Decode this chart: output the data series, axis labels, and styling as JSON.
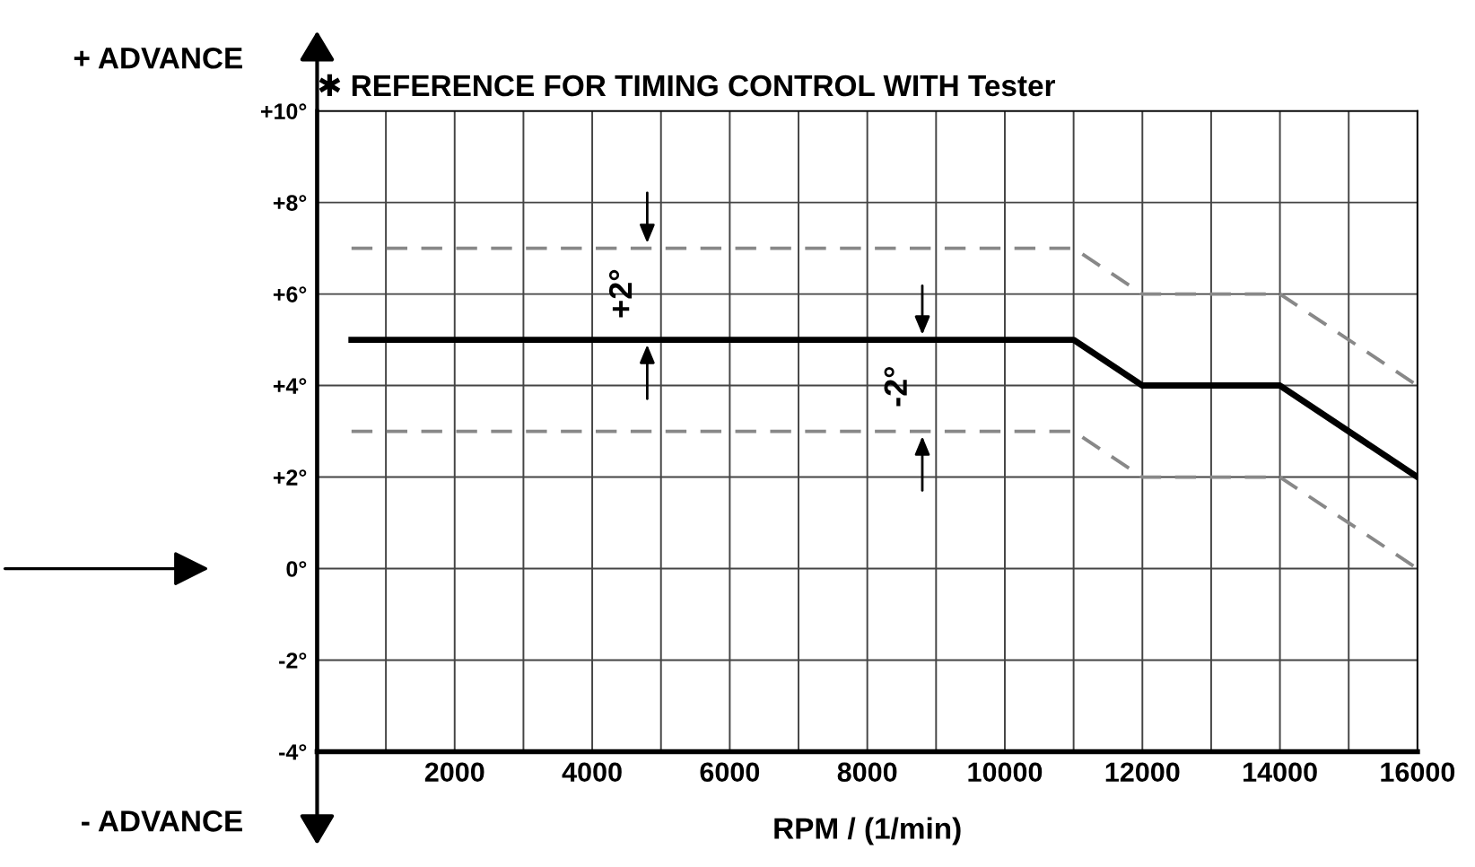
{
  "chart_data": {
    "type": "line",
    "title": "✱ REFERENCE FOR TIMING CONTROL WITH Tester",
    "xlabel": "RPM / (1/min)",
    "x": [
      500,
      11000,
      12000,
      14000,
      16000
    ],
    "series": [
      {
        "color": "#000000",
        "line_style": "solid",
        "values": [
          5,
          5,
          4,
          4,
          2
        ]
      },
      {
        "color": "#888888",
        "line_style": "dashed",
        "values": [
          7,
          7,
          6,
          6,
          4
        ]
      },
      {
        "color": "#888888",
        "line_style": "dashed",
        "values": [
          3,
          3,
          2,
          2,
          0
        ]
      }
    ],
    "xlim": [
      0,
      16000
    ],
    "ylim": [
      -4,
      10
    ],
    "xticks": [
      {
        "value": 1000,
        "label": null
      },
      2000,
      {
        "value": 3000,
        "label": null
      },
      4000,
      {
        "value": 5000,
        "label": null
      },
      6000,
      {
        "value": 7000,
        "label": null
      },
      8000,
      {
        "value": 9000,
        "label": null
      },
      10000,
      {
        "value": 11000,
        "label": null
      },
      12000,
      {
        "value": 13000,
        "label": null
      },
      14000,
      {
        "value": 15000,
        "label": null
      },
      16000
    ],
    "yticks": [
      {
        "value": -4,
        "label": "-4°"
      },
      {
        "value": -2,
        "label": "-2°"
      },
      {
        "value": 0,
        "label": "0°"
      },
      {
        "value": 2,
        "label": "+2°"
      },
      {
        "value": 4,
        "label": "+4°"
      },
      {
        "value": 6,
        "label": "+6°"
      },
      {
        "value": 8,
        "label": "+8°"
      },
      {
        "value": 10,
        "label": "+10°"
      }
    ],
    "grid": true,
    "marker": "none",
    "legend": false,
    "annotations": [
      "+ ADVANCE",
      "- ADVANCE",
      "+2°",
      "-2°"
    ]
  }
}
